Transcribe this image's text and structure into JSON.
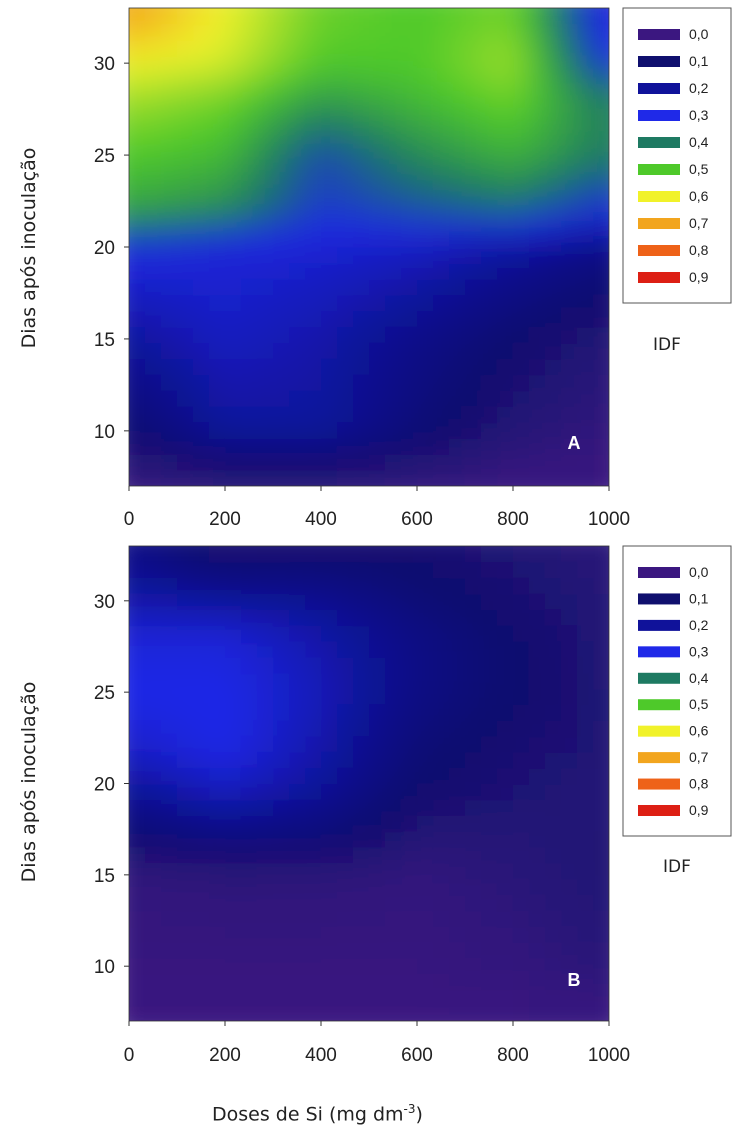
{
  "shared": {
    "xlabel": "Doses de Si (mg dm",
    "xlabel_exp": "-3",
    "xlabel_close": ")",
    "colorbar_label": "IDF"
  },
  "chart_data": [
    {
      "type": "heatmap",
      "panel_label": "A",
      "xlabel": "Doses de Si (mg dm-3)",
      "ylabel": "Dias após inoculação",
      "x_ticks": [
        "0",
        "200",
        "400",
        "600",
        "800",
        "1000"
      ],
      "y_ticks": [
        "10",
        "15",
        "20",
        "25",
        "30"
      ],
      "xlim": [
        0,
        1000
      ],
      "ylim": [
        7,
        33
      ],
      "colorbar_title": "IDF",
      "legend": [
        "0,0",
        "0,1",
        "0,2",
        "0,3",
        "0,4",
        "0,5",
        "0,6",
        "0,7",
        "0,8",
        "0,9"
      ],
      "legend_colors": [
        "#3b1780",
        "#0f0f6e",
        "#10129a",
        "#1f29e8",
        "#1e7a62",
        "#4ec92a",
        "#f1f22a",
        "#f2a51e",
        "#ee6218",
        "#dd1f14"
      ],
      "legend_placement": "right",
      "x": [
        0,
        200,
        400,
        600,
        800,
        1000
      ],
      "y": [
        7,
        10,
        15,
        20,
        22,
        25,
        28,
        30,
        33
      ],
      "z": [
        [
          0.0,
          0.02,
          0.02,
          0.01,
          0.0,
          0.0
        ],
        [
          0.1,
          0.2,
          0.2,
          0.12,
          0.05,
          0.02
        ],
        [
          0.2,
          0.25,
          0.22,
          0.16,
          0.1,
          0.05
        ],
        [
          0.3,
          0.28,
          0.27,
          0.25,
          0.2,
          0.15
        ],
        [
          0.45,
          0.42,
          0.32,
          0.35,
          0.38,
          0.3
        ],
        [
          0.5,
          0.48,
          0.34,
          0.42,
          0.47,
          0.4
        ],
        [
          0.55,
          0.52,
          0.44,
          0.48,
          0.52,
          0.4
        ],
        [
          0.6,
          0.58,
          0.5,
          0.5,
          0.55,
          0.3
        ],
        [
          0.72,
          0.6,
          0.52,
          0.5,
          0.52,
          0.25
        ]
      ]
    },
    {
      "type": "heatmap",
      "panel_label": "B",
      "xlabel": "Doses de Si (mg dm-3)",
      "ylabel": "Dias após inoculação",
      "x_ticks": [
        "0",
        "200",
        "400",
        "600",
        "800",
        "1000"
      ],
      "y_ticks": [
        "10",
        "15",
        "20",
        "25",
        "30"
      ],
      "xlim": [
        0,
        1000
      ],
      "ylim": [
        7,
        33
      ],
      "colorbar_title": "IDF",
      "legend": [
        "0,0",
        "0,1",
        "0,2",
        "0,3",
        "0,4",
        "0,5",
        "0,6",
        "0,7",
        "0,8",
        "0,9"
      ],
      "legend_colors": [
        "#3b1780",
        "#0f0f6e",
        "#10129a",
        "#1f29e8",
        "#1e7a62",
        "#4ec92a",
        "#f1f22a",
        "#f2a51e",
        "#ee6218",
        "#dd1f14"
      ],
      "legend_placement": "right",
      "x": [
        0,
        200,
        400,
        600,
        800,
        1000
      ],
      "y": [
        7,
        10,
        15,
        17,
        20,
        22,
        25,
        28,
        30,
        33
      ],
      "z": [
        [
          0.0,
          0.0,
          0.0,
          0.0,
          0.0,
          0.0
        ],
        [
          0.01,
          0.01,
          0.01,
          0.01,
          0.02,
          0.04
        ],
        [
          0.02,
          0.03,
          0.03,
          0.02,
          0.04,
          0.06
        ],
        [
          0.1,
          0.14,
          0.12,
          0.05,
          0.05,
          0.06
        ],
        [
          0.2,
          0.26,
          0.2,
          0.1,
          0.07,
          0.05
        ],
        [
          0.26,
          0.3,
          0.22,
          0.12,
          0.08,
          0.06
        ],
        [
          0.3,
          0.3,
          0.24,
          0.15,
          0.1,
          0.06
        ],
        [
          0.28,
          0.28,
          0.22,
          0.15,
          0.1,
          0.05
        ],
        [
          0.22,
          0.2,
          0.18,
          0.12,
          0.08,
          0.05
        ],
        [
          0.15,
          0.06,
          0.08,
          0.08,
          0.06,
          0.04
        ]
      ]
    }
  ]
}
